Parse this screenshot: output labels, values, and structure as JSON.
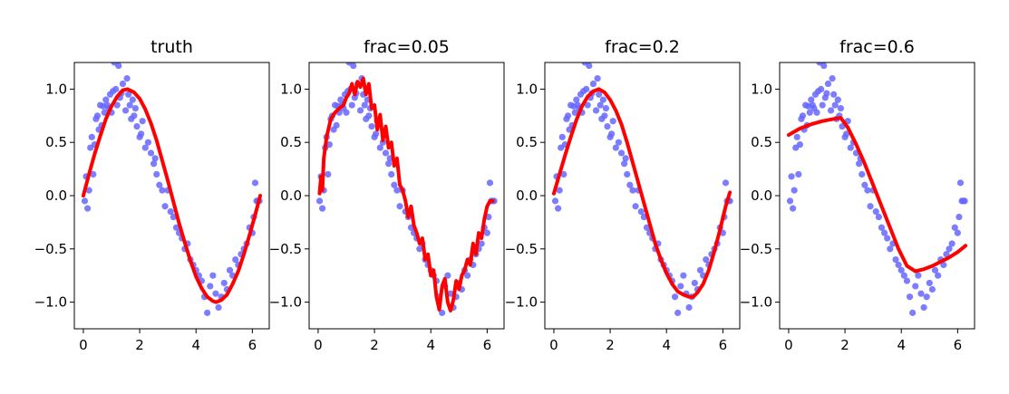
{
  "chart_data": [
    {
      "type": "scatter",
      "title": "truth",
      "xlabel": "",
      "ylabel": "",
      "xlim": [
        -0.32,
        6.6
      ],
      "ylim": [
        -1.25,
        1.25
      ],
      "xticks": [
        0,
        2,
        4,
        6
      ],
      "xtick_labels": [
        "0",
        "2",
        "4",
        "6"
      ],
      "yticks": [
        1.0,
        0.5,
        0.0,
        -0.5,
        -1.0
      ],
      "ytick_labels": [
        "1.0",
        "0.5",
        "0.0",
        "−0.5",
        "−1.0"
      ],
      "grid": false,
      "colors": {
        "points": "#6666ff",
        "curve": "#ff0000"
      },
      "line": {
        "x": [
          0.0,
          0.2,
          0.4,
          0.6,
          0.8,
          1.0,
          1.2,
          1.4,
          1.57,
          1.8,
          2.0,
          2.2,
          2.4,
          2.6,
          2.8,
          3.0,
          3.2,
          3.4,
          3.6,
          3.8,
          4.0,
          4.2,
          4.4,
          4.6,
          4.71,
          4.9,
          5.1,
          5.3,
          5.5,
          5.7,
          5.9,
          6.1,
          6.28
        ],
        "y": [
          0.0,
          0.2,
          0.39,
          0.56,
          0.72,
          0.84,
          0.93,
          0.99,
          1.0,
          0.97,
          0.91,
          0.81,
          0.68,
          0.52,
          0.33,
          0.14,
          -0.06,
          -0.26,
          -0.44,
          -0.61,
          -0.76,
          -0.87,
          -0.95,
          -0.99,
          -1.0,
          -0.98,
          -0.93,
          -0.83,
          -0.71,
          -0.55,
          -0.37,
          -0.18,
          0.0
        ]
      }
    },
    {
      "type": "scatter",
      "title": "frac=0.05",
      "xlabel": "",
      "ylabel": "",
      "xlim": [
        -0.32,
        6.6
      ],
      "ylim": [
        -1.25,
        1.25
      ],
      "xticks": [
        0,
        2,
        4,
        6
      ],
      "xtick_labels": [
        "0",
        "2",
        "4",
        "6"
      ],
      "yticks": [
        1.0,
        0.5,
        0.0,
        -0.5,
        -1.0
      ],
      "ytick_labels": [
        "1.0",
        "0.5",
        "0.0",
        "−0.5",
        "−1.0"
      ],
      "grid": false,
      "colors": {
        "points": "#6666ff",
        "curve": "#ff0000"
      },
      "line": {
        "x": [
          0.05,
          0.1,
          0.15,
          0.2,
          0.3,
          0.45,
          0.6,
          0.75,
          0.9,
          1.0,
          1.1,
          1.2,
          1.3,
          1.4,
          1.5,
          1.6,
          1.7,
          1.8,
          1.9,
          2.0,
          2.1,
          2.2,
          2.3,
          2.4,
          2.5,
          2.6,
          2.7,
          2.8,
          2.9,
          3.0,
          3.1,
          3.2,
          3.3,
          3.4,
          3.5,
          3.6,
          3.7,
          3.8,
          3.9,
          4.0,
          4.1,
          4.2,
          4.3,
          4.4,
          4.5,
          4.6,
          4.7,
          4.8,
          4.9,
          5.0,
          5.1,
          5.2,
          5.3,
          5.4,
          5.5,
          5.6,
          5.7,
          5.8,
          5.9,
          6.0,
          6.1,
          6.2
        ],
        "y": [
          0.02,
          0.18,
          0.05,
          0.35,
          0.55,
          0.72,
          0.78,
          0.82,
          0.85,
          0.92,
          0.96,
          1.05,
          0.95,
          1.07,
          1.02,
          1.1,
          0.95,
          1.05,
          0.82,
          0.85,
          0.62,
          0.76,
          0.52,
          0.65,
          0.45,
          0.5,
          0.28,
          0.35,
          0.1,
          0.05,
          -0.05,
          -0.2,
          -0.1,
          -0.28,
          -0.35,
          -0.45,
          -0.4,
          -0.6,
          -0.55,
          -0.75,
          -0.7,
          -0.95,
          -1.07,
          -0.85,
          -0.78,
          -1.0,
          -1.08,
          -0.98,
          -0.8,
          -0.88,
          -0.75,
          -0.7,
          -0.6,
          -0.65,
          -0.45,
          -0.55,
          -0.35,
          -0.4,
          -0.22,
          -0.1,
          -0.05,
          -0.05
        ]
      }
    },
    {
      "type": "scatter",
      "title": "frac=0.2",
      "xlabel": "",
      "ylabel": "",
      "xlim": [
        -0.32,
        6.6
      ],
      "ylim": [
        -1.25,
        1.25
      ],
      "xticks": [
        0,
        2,
        4,
        6
      ],
      "xtick_labels": [
        "0",
        "2",
        "4",
        "6"
      ],
      "yticks": [
        1.0,
        0.5,
        0.0,
        -0.5,
        -1.0
      ],
      "ytick_labels": [
        "1.0",
        "0.5",
        "0.0",
        "−0.5",
        "−1.0"
      ],
      "grid": false,
      "colors": {
        "points": "#6666ff",
        "curve": "#ff0000"
      },
      "line": {
        "x": [
          0.0,
          0.2,
          0.4,
          0.6,
          0.8,
          1.0,
          1.2,
          1.4,
          1.6,
          1.8,
          2.0,
          2.2,
          2.4,
          2.6,
          2.8,
          3.0,
          3.2,
          3.4,
          3.6,
          3.8,
          4.0,
          4.2,
          4.4,
          4.6,
          4.8,
          4.95,
          5.1,
          5.3,
          5.5,
          5.7,
          5.9,
          6.1,
          6.25
        ],
        "y": [
          0.02,
          0.2,
          0.38,
          0.55,
          0.71,
          0.84,
          0.93,
          0.98,
          1.0,
          0.97,
          0.9,
          0.8,
          0.67,
          0.5,
          0.31,
          0.12,
          -0.07,
          -0.26,
          -0.45,
          -0.6,
          -0.73,
          -0.83,
          -0.9,
          -0.93,
          -0.95,
          -0.95,
          -0.91,
          -0.83,
          -0.7,
          -0.52,
          -0.32,
          -0.1,
          0.03
        ]
      }
    },
    {
      "type": "scatter",
      "title": "frac=0.6",
      "xlabel": "",
      "ylabel": "",
      "xlim": [
        -0.32,
        6.6
      ],
      "ylim": [
        -1.25,
        1.25
      ],
      "xticks": [
        0,
        2,
        4,
        6
      ],
      "xtick_labels": [
        "0",
        "2",
        "4",
        "6"
      ],
      "yticks": [
        1.0,
        0.5,
        0.0,
        -0.5,
        -1.0
      ],
      "ytick_labels": [
        "1.0",
        "0.5",
        "0.0",
        "−0.5",
        "−1.0"
      ],
      "grid": false,
      "colors": {
        "points": "#6666ff",
        "curve": "#ff0000"
      },
      "line": {
        "x": [
          0.0,
          0.4,
          0.8,
          1.2,
          1.6,
          1.85,
          2.1,
          2.4,
          2.7,
          3.0,
          3.3,
          3.6,
          3.9,
          4.2,
          4.5,
          4.8,
          5.1,
          5.4,
          5.7,
          6.0,
          6.28
        ],
        "y": [
          0.57,
          0.63,
          0.67,
          0.7,
          0.72,
          0.73,
          0.64,
          0.48,
          0.3,
          0.1,
          -0.1,
          -0.3,
          -0.5,
          -0.66,
          -0.71,
          -0.69,
          -0.66,
          -0.62,
          -0.58,
          -0.53,
          -0.47
        ]
      }
    }
  ],
  "scatter_points": {
    "x": [
      0.05,
      0.1,
      0.15,
      0.2,
      0.25,
      0.3,
      0.35,
      0.4,
      0.45,
      0.5,
      0.55,
      0.6,
      0.65,
      0.7,
      0.75,
      0.8,
      0.85,
      0.9,
      0.95,
      1.0,
      1.05,
      1.1,
      1.15,
      1.2,
      1.25,
      1.3,
      1.35,
      1.4,
      1.5,
      1.55,
      1.6,
      1.65,
      1.7,
      1.75,
      1.8,
      1.85,
      1.9,
      2.0,
      2.05,
      2.1,
      2.2,
      2.3,
      2.4,
      2.5,
      2.55,
      2.6,
      2.7,
      2.8,
      2.9,
      3.0,
      3.1,
      3.2,
      3.3,
      3.4,
      3.5,
      3.6,
      3.7,
      3.8,
      3.9,
      4.0,
      4.1,
      4.2,
      4.3,
      4.4,
      4.5,
      4.6,
      4.7,
      4.8,
      4.9,
      5.0,
      5.1,
      5.2,
      5.3,
      5.4,
      5.5,
      5.6,
      5.7,
      5.8,
      5.9,
      6.0,
      6.05,
      6.1,
      6.15,
      6.2,
      6.25
    ],
    "y": [
      -0.05,
      0.18,
      -0.12,
      0.05,
      0.45,
      0.55,
      0.2,
      0.48,
      0.72,
      0.75,
      0.62,
      0.85,
      0.66,
      0.84,
      0.78,
      0.9,
      0.85,
      0.82,
      0.95,
      0.78,
      0.98,
      1.25,
      1.0,
      0.85,
      1.22,
      0.92,
      0.96,
      1.05,
      0.8,
      1.1,
      0.95,
      0.85,
      0.72,
      0.9,
      0.75,
      0.82,
      0.65,
      0.55,
      0.58,
      0.7,
      0.45,
      0.5,
      0.4,
      0.3,
      0.35,
      0.2,
      0.1,
      0.05,
      -0.1,
      0.05,
      -0.15,
      -0.2,
      -0.3,
      -0.35,
      -0.4,
      -0.5,
      -0.45,
      -0.6,
      -0.65,
      -0.7,
      -0.75,
      -0.8,
      -0.95,
      -1.1,
      -0.85,
      -0.75,
      -0.92,
      -1.05,
      -0.95,
      -0.82,
      -0.88,
      -0.7,
      -0.75,
      -0.6,
      -0.65,
      -0.55,
      -0.5,
      -0.45,
      -0.3,
      -0.35,
      -0.2,
      0.12,
      -0.05,
      -0.05,
      -0.05
    ]
  }
}
